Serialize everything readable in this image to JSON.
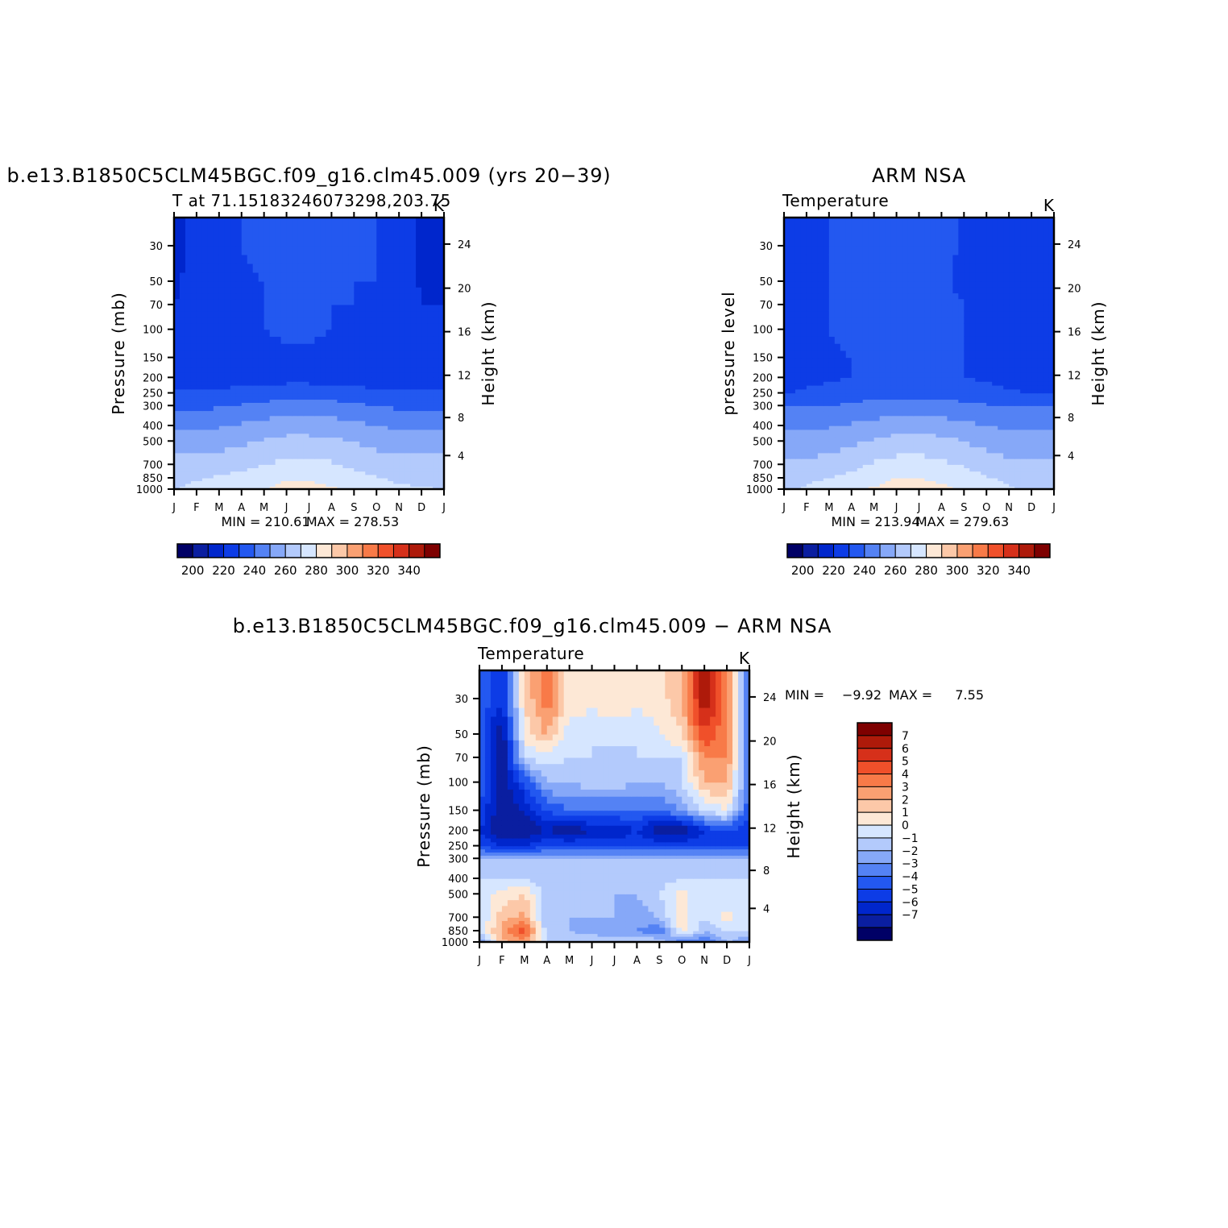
{
  "colors": {
    "model_obs_scale": [
      "#000066",
      "#0a1ea0",
      "#0026cc",
      "#0d3ce6",
      "#2358f0",
      "#5482f4",
      "#86a8f8",
      "#b3cafc",
      "#d6e6ff",
      "#fde8d6",
      "#fcc8a8",
      "#faa072",
      "#f87a48",
      "#f0502a",
      "#d6301a",
      "#ae1a0a",
      "#7e0000"
    ],
    "diff_scale": [
      "#000066",
      "#0a1ea0",
      "#0026cc",
      "#0d3ce6",
      "#2358f0",
      "#5482f4",
      "#86a8f8",
      "#b3cafc",
      "#d6e6ff",
      "#fde8d6",
      "#fcc8a8",
      "#faa072",
      "#f87a48",
      "#f0502a",
      "#d6301a",
      "#ae1a0a",
      "#7e0000"
    ]
  },
  "chart_data": [
    {
      "type": "heatmap",
      "title": "b.e13.B1850C5CLM45BGC.f09_g16.clm45.009 (yrs 20−39)",
      "left_subtitle": "T at 71.15183246073298,203.75",
      "right_subtitle": "K",
      "ylabel": "Pressure (mb)",
      "y2label": "Height (km)",
      "x_tick_labels": [
        "J",
        "F",
        "M",
        "A",
        "M",
        "J",
        "J",
        "A",
        "S",
        "O",
        "N",
        "D",
        "J"
      ],
      "y_tick_labels": [
        "30",
        "50",
        "70",
        "100",
        "150",
        "200",
        "250",
        "300",
        "400",
        "500",
        "700",
        "850",
        "1000"
      ],
      "y2_tick_labels": [
        "24",
        "20",
        "16",
        "12",
        "8",
        "4"
      ],
      "x": [
        "J",
        "F",
        "M",
        "A",
        "M",
        "J",
        "J",
        "A",
        "S",
        "O",
        "N",
        "D",
        "J"
      ],
      "levels": [
        1000,
        850,
        700,
        500,
        400,
        300,
        250,
        200,
        150,
        100,
        70,
        50,
        30
      ],
      "z": [
        [
          265,
          268,
          270,
          272,
          275,
          278,
          278,
          276,
          273,
          270,
          267,
          266,
          265
        ],
        [
          262,
          264,
          266,
          268,
          271,
          274,
          274,
          272,
          269,
          266,
          263,
          262,
          262
        ],
        [
          258,
          258,
          260,
          262,
          265,
          268,
          268,
          266,
          263,
          260,
          258,
          258,
          258
        ],
        [
          250,
          250,
          251,
          253,
          256,
          258,
          258,
          257,
          255,
          252,
          250,
          250,
          250
        ],
        [
          243,
          243,
          244,
          246,
          248,
          250,
          250,
          249,
          247,
          245,
          243,
          243,
          243
        ],
        [
          233,
          233,
          234,
          236,
          238,
          240,
          240,
          239,
          237,
          235,
          233,
          233,
          233
        ],
        [
          226,
          226,
          227,
          228,
          229,
          230,
          230,
          229,
          228,
          227,
          226,
          226,
          226
        ],
        [
          220,
          220,
          221,
          221,
          222,
          222,
          222,
          222,
          221,
          221,
          220,
          220,
          220
        ],
        [
          218,
          219,
          220,
          222,
          223,
          224,
          224,
          223,
          222,
          221,
          219,
          218,
          218
        ],
        [
          216,
          218,
          221,
          224,
          225,
          226,
          226,
          225,
          224,
          223,
          219,
          216,
          216
        ],
        [
          215,
          217,
          221,
          224,
          225,
          226,
          226,
          225,
          225,
          224,
          219,
          215,
          215
        ],
        [
          214,
          217,
          221,
          224,
          225,
          226,
          226,
          225,
          225,
          225,
          220,
          214,
          214
        ],
        [
          213,
          217,
          222,
          225,
          226,
          227,
          227,
          226,
          226,
          225,
          220,
          213,
          213
        ]
      ],
      "min_label": "MIN = 210.61",
      "max_label": "MAX = 278.53",
      "colorbar_labels": [
        "200",
        "220",
        "240",
        "260",
        "280",
        "300",
        "320",
        "340"
      ]
    },
    {
      "type": "heatmap",
      "title": "ARM NSA",
      "left_subtitle": "Temperature",
      "right_subtitle": "K",
      "ylabel": "pressure level",
      "y2label": "Height (km)",
      "x_tick_labels": [
        "J",
        "F",
        "M",
        "A",
        "M",
        "J",
        "J",
        "A",
        "S",
        "O",
        "N",
        "D",
        "J"
      ],
      "y_tick_labels": [
        "30",
        "50",
        "70",
        "100",
        "150",
        "200",
        "250",
        "300",
        "400",
        "500",
        "700",
        "850",
        "1000"
      ],
      "y2_tick_labels": [
        "24",
        "20",
        "16",
        "12",
        "8",
        "4"
      ],
      "x": [
        "J",
        "F",
        "M",
        "A",
        "M",
        "J",
        "J",
        "A",
        "S",
        "O",
        "N",
        "D",
        "J"
      ],
      "levels": [
        1000,
        850,
        700,
        500,
        400,
        300,
        250,
        200,
        150,
        100,
        70,
        50,
        30
      ],
      "z": [
        [
          264,
          266,
          269,
          272,
          276,
          279,
          279,
          277,
          273,
          269,
          266,
          264,
          264
        ],
        [
          261,
          263,
          265,
          268,
          272,
          275,
          275,
          273,
          270,
          266,
          263,
          261,
          261
        ],
        [
          257,
          257,
          259,
          262,
          266,
          269,
          269,
          267,
          264,
          260,
          257,
          257,
          257
        ],
        [
          250,
          250,
          251,
          253,
          256,
          259,
          259,
          258,
          255,
          252,
          250,
          250,
          250
        ],
        [
          243,
          243,
          244,
          246,
          248,
          250,
          250,
          249,
          247,
          245,
          243,
          243,
          243
        ],
        [
          234,
          234,
          235,
          237,
          239,
          240,
          240,
          239,
          238,
          236,
          234,
          234,
          234
        ],
        [
          225,
          226,
          228,
          229,
          230,
          231,
          231,
          230,
          229,
          228,
          226,
          225,
          225
        ],
        [
          221,
          223,
          224,
          225,
          226,
          227,
          227,
          226,
          225,
          224,
          222,
          221,
          221
        ],
        [
          222,
          223,
          224,
          225,
          226,
          227,
          227,
          226,
          225,
          223,
          222,
          222,
          222
        ],
        [
          223,
          224,
          225,
          226,
          226,
          227,
          227,
          226,
          225,
          222,
          220,
          221,
          222
        ],
        [
          223,
          224,
          225,
          226,
          226,
          227,
          227,
          226,
          225,
          221,
          219,
          220,
          222
        ],
        [
          223,
          224,
          225,
          226,
          226,
          227,
          227,
          226,
          224,
          220,
          219,
          220,
          222
        ],
        [
          223,
          224,
          225,
          226,
          227,
          228,
          229,
          227,
          224,
          220,
          219,
          220,
          222
        ]
      ],
      "min_label": "MIN = 213.94",
      "max_label": "MAX = 279.63",
      "colorbar_labels": [
        "200",
        "220",
        "240",
        "260",
        "280",
        "300",
        "320",
        "340"
      ]
    },
    {
      "type": "heatmap",
      "title": "b.e13.B1850C5CLM45BGC.f09_g16.clm45.009 − ARM NSA",
      "left_subtitle": "Temperature",
      "right_subtitle": "K",
      "ylabel": "Pressure (mb)",
      "y2label": "Height (km)",
      "x_tick_labels": [
        "J",
        "F",
        "M",
        "A",
        "M",
        "J",
        "J",
        "A",
        "S",
        "O",
        "N",
        "D",
        "J"
      ],
      "y_tick_labels": [
        "30",
        "50",
        "70",
        "100",
        "150",
        "200",
        "250",
        "300",
        "400",
        "500",
        "700",
        "850",
        "1000"
      ],
      "y2_tick_labels": [
        "24",
        "20",
        "16",
        "12",
        "8",
        "4"
      ],
      "x": [
        "J",
        "F",
        "M",
        "A",
        "M",
        "J",
        "J",
        "A",
        "S",
        "O",
        "N",
        "D",
        "J"
      ],
      "levels": [
        1000,
        850,
        700,
        500,
        400,
        300,
        250,
        200,
        150,
        100,
        70,
        50,
        30
      ],
      "z": [
        [
          -3,
          1.5,
          3,
          -1,
          -1,
          -1,
          -1,
          -1,
          -1,
          -4,
          -4,
          -2,
          -3
        ],
        [
          -1,
          2.5,
          4.5,
          -1.5,
          -2,
          -2.5,
          -3,
          -3,
          -4,
          0.5,
          -2,
          -1,
          -1
        ],
        [
          -1,
          1.5,
          2.5,
          -2,
          -2,
          -2,
          -2,
          -2.5,
          -2,
          0.5,
          -1,
          0.5,
          -1
        ],
        [
          -1,
          0.5,
          1,
          -1.5,
          -1.5,
          -1.5,
          -2,
          -2,
          -1,
          0.5,
          -1,
          -1,
          -1
        ],
        [
          -1,
          -1,
          -1,
          -1.5,
          -1.5,
          -1.5,
          -1.5,
          -1.5,
          -1.5,
          -1,
          -1,
          -1,
          -1
        ],
        [
          -2,
          -2,
          -2,
          -2,
          -2,
          -2,
          -2,
          -2,
          -2,
          -2,
          -2,
          -2,
          -2
        ],
        [
          -5,
          -6,
          -6,
          -5,
          -5,
          -5,
          -5,
          -5,
          -5,
          -5,
          -5,
          -5,
          -5
        ],
        [
          -6,
          -8,
          -8,
          -7,
          -8,
          -7,
          -7,
          -6,
          -8,
          -8,
          -6,
          -5,
          -6
        ],
        [
          -5,
          -8,
          -7,
          -5,
          -4,
          -4,
          -4,
          -4,
          -4,
          -3,
          -1,
          0,
          -5
        ],
        [
          -4,
          -8,
          -5,
          -2,
          -2,
          -1.5,
          -1.5,
          -2,
          -2,
          -1,
          2,
          2,
          -4
        ],
        [
          -4,
          -8,
          -1,
          -0.5,
          -1,
          -1,
          -1.5,
          -1,
          -1,
          -1,
          3,
          3,
          -4
        ],
        [
          -4,
          -8,
          0.5,
          2,
          -0.5,
          -1,
          -0.5,
          -1,
          0,
          1,
          5,
          3,
          -4
        ],
        [
          -4,
          -6,
          1,
          4,
          0.5,
          0.5,
          0.5,
          0.5,
          0.5,
          2,
          7,
          3,
          -4
        ]
      ],
      "min_label": "MIN =",
      "min_value": "−9.92",
      "max_label": "MAX =",
      "max_value": "7.55",
      "colorbar_labels": [
        "7",
        "6",
        "5",
        "4",
        "3",
        "2",
        "1",
        "0",
        "−1",
        "−2",
        "−3",
        "−4",
        "−5",
        "−6",
        "−7"
      ]
    }
  ]
}
